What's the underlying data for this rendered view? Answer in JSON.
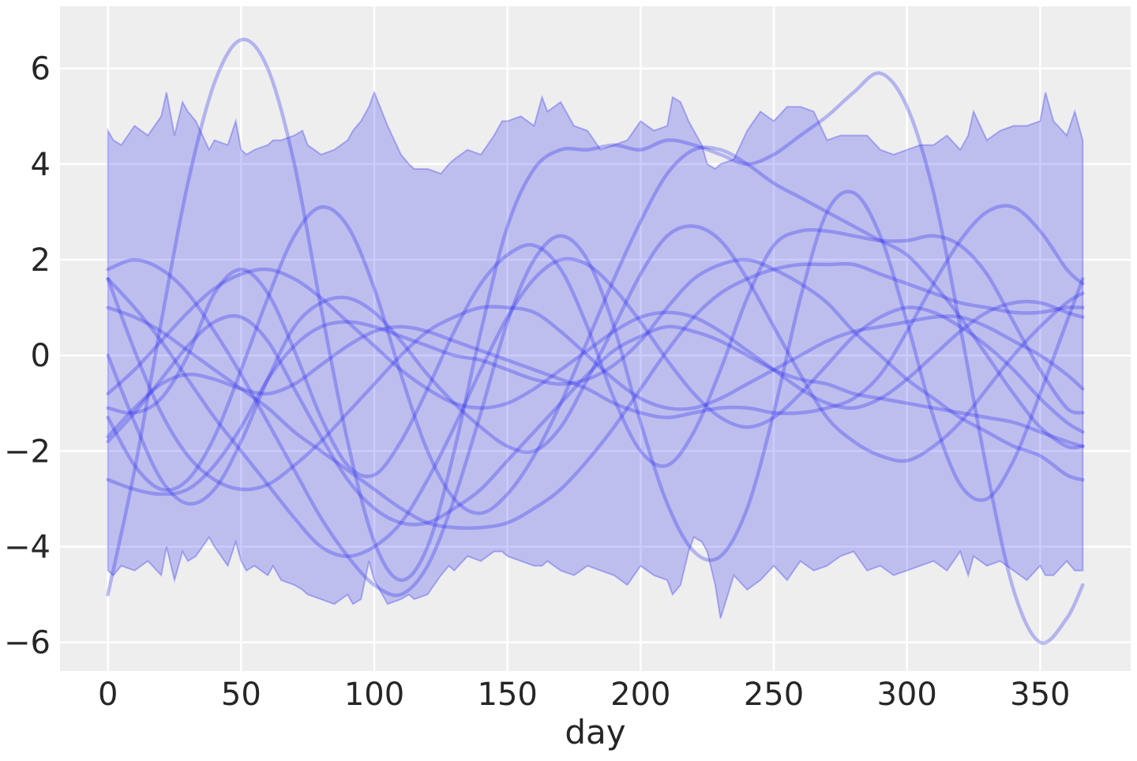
{
  "chart_data": {
    "type": "line",
    "title": "",
    "xlabel": "day",
    "ylabel": "",
    "xlim": [
      -18,
      384
    ],
    "ylim": [
      -6.6,
      7.3
    ],
    "xticks": [
      0,
      50,
      100,
      150,
      200,
      250,
      300,
      350
    ],
    "yticks": [
      -6,
      -4,
      -2,
      0,
      2,
      4,
      6
    ],
    "xtick_labels": [
      "0",
      "50",
      "100",
      "150",
      "200",
      "250",
      "300",
      "350"
    ],
    "ytick_labels": [
      "−6",
      "−4",
      "−2",
      "0",
      "2",
      "4",
      "6"
    ],
    "grid": true,
    "background_color": "#eeeeee",
    "grid_color": "#ffffff",
    "band_color": "#0000ee",
    "line_color": "#2a2aee",
    "interval_band": {
      "x": [
        0,
        2,
        5,
        10,
        15,
        20,
        22,
        25,
        28,
        30,
        33,
        38,
        40,
        45,
        48,
        50,
        52,
        55,
        60,
        62,
        65,
        70,
        73,
        75,
        80,
        85,
        90,
        92,
        95,
        98,
        100,
        105,
        110,
        113,
        115,
        120,
        125,
        128,
        130,
        135,
        140,
        145,
        148,
        150,
        155,
        160,
        163,
        165,
        170,
        175,
        180,
        185,
        190,
        195,
        200,
        205,
        210,
        212,
        215,
        218,
        220,
        223,
        225,
        228,
        230,
        235,
        240,
        245,
        250,
        255,
        260,
        265,
        270,
        275,
        280,
        285,
        290,
        295,
        300,
        305,
        310,
        315,
        320,
        323,
        325,
        330,
        335,
        340,
        345,
        350,
        352,
        355,
        360,
        363,
        366
      ],
      "upper": [
        4.7,
        4.5,
        4.4,
        4.8,
        4.6,
        5.0,
        5.5,
        4.6,
        5.3,
        5.1,
        4.9,
        4.3,
        4.5,
        4.4,
        4.9,
        4.3,
        4.2,
        4.3,
        4.4,
        4.5,
        4.5,
        4.6,
        4.7,
        4.4,
        4.2,
        4.3,
        4.5,
        4.7,
        4.9,
        5.2,
        5.5,
        4.8,
        4.2,
        4.0,
        3.9,
        3.9,
        3.8,
        4.0,
        4.1,
        4.3,
        4.2,
        4.6,
        4.9,
        4.9,
        5.0,
        4.8,
        5.4,
        5.1,
        5.3,
        4.8,
        4.7,
        4.3,
        4.4,
        4.5,
        4.9,
        4.7,
        4.8,
        5.4,
        5.3,
        4.9,
        4.7,
        4.4,
        4.0,
        3.9,
        4.0,
        4.1,
        4.7,
        5.1,
        4.9,
        5.2,
        5.2,
        5.1,
        4.5,
        4.6,
        4.6,
        4.6,
        4.3,
        4.2,
        4.3,
        4.4,
        4.4,
        4.6,
        4.3,
        4.6,
        5.1,
        4.5,
        4.7,
        4.8,
        4.8,
        4.9,
        5.5,
        4.9,
        4.6,
        5.1,
        4.5
      ],
      "lower": [
        -4.5,
        -4.6,
        -4.4,
        -4.5,
        -4.3,
        -4.6,
        -4.0,
        -4.7,
        -4.1,
        -4.3,
        -4.2,
        -3.8,
        -4.0,
        -4.4,
        -3.9,
        -4.3,
        -4.5,
        -4.4,
        -4.6,
        -4.4,
        -4.7,
        -4.8,
        -4.9,
        -5.0,
        -5.1,
        -5.2,
        -5.0,
        -5.2,
        -5.1,
        -4.3,
        -4.7,
        -5.2,
        -5.1,
        -5.0,
        -5.1,
        -5.0,
        -4.6,
        -4.4,
        -4.5,
        -4.2,
        -4.3,
        -4.1,
        -4.1,
        -4.2,
        -4.3,
        -4.4,
        -4.4,
        -4.3,
        -4.5,
        -4.6,
        -4.4,
        -4.5,
        -4.6,
        -4.8,
        -4.4,
        -4.6,
        -4.7,
        -5.0,
        -4.8,
        -4.1,
        -3.8,
        -3.9,
        -4.1,
        -4.8,
        -5.5,
        -4.6,
        -4.9,
        -4.7,
        -4.4,
        -4.7,
        -4.3,
        -4.5,
        -4.4,
        -4.2,
        -4.1,
        -4.5,
        -4.4,
        -4.6,
        -4.5,
        -4.4,
        -4.3,
        -4.5,
        -4.1,
        -4.6,
        -4.2,
        -4.4,
        -4.3,
        -4.5,
        -4.7,
        -4.4,
        -4.6,
        -4.6,
        -4.3,
        -4.5,
        -4.5
      ]
    },
    "sample_x": [
      0,
      10,
      20,
      30,
      40,
      50,
      60,
      70,
      80,
      90,
      100,
      110,
      120,
      130,
      140,
      150,
      160,
      170,
      180,
      190,
      200,
      210,
      220,
      230,
      240,
      250,
      260,
      270,
      280,
      290,
      300,
      310,
      320,
      330,
      340,
      350,
      360,
      366
    ],
    "series": [
      {
        "values": [
          -5.0,
          -2.4,
          0.7,
          3.6,
          5.7,
          6.6,
          6.0,
          4.0,
          1.0,
          -1.8,
          -3.9,
          -4.7,
          -4.0,
          -2.0,
          0.5,
          2.7,
          3.9,
          4.3,
          4.3,
          4.4,
          4.3,
          4.5,
          4.4,
          4.2,
          4.0,
          4.2,
          4.6,
          5.0,
          5.5,
          5.9,
          5.2,
          3.4,
          0.6,
          -2.4,
          -4.9,
          -6.0,
          -5.5,
          -4.8
        ]
      },
      {
        "values": [
          1.8,
          2.0,
          1.8,
          1.3,
          0.5,
          -0.4,
          -1.4,
          -2.4,
          -3.4,
          -4.2,
          -4.8,
          -5.0,
          -4.4,
          -3.0,
          -1.2,
          0.7,
          2.0,
          2.5,
          2.0,
          0.6,
          -1.4,
          -3.1,
          -4.1,
          -4.2,
          -3.2,
          -1.2,
          1.2,
          3.0,
          3.4,
          2.5,
          0.7,
          -1.3,
          -2.7,
          -3.0,
          -2.2,
          -0.8,
          0.7,
          1.6
        ]
      },
      {
        "values": [
          -1.3,
          -2.3,
          -2.8,
          -2.6,
          -1.7,
          -0.3,
          1.2,
          2.5,
          3.1,
          2.7,
          1.4,
          -0.4,
          -2.0,
          -3.0,
          -3.3,
          -2.9,
          -2.1,
          -1.0,
          0.3,
          1.6,
          2.8,
          3.8,
          4.3,
          4.3,
          4.0,
          3.6,
          3.3,
          3.0,
          2.7,
          2.4,
          2.1,
          1.5,
          0.8,
          0.0,
          -0.8,
          -1.5,
          -1.9,
          -1.9
        ]
      },
      {
        "values": [
          0.0,
          -1.4,
          -2.6,
          -3.1,
          -2.8,
          -1.8,
          -0.5,
          0.6,
          1.1,
          1.2,
          0.9,
          0.3,
          -0.4,
          -1.0,
          -1.5,
          -1.9,
          -2.0,
          -1.5,
          -0.5,
          0.6,
          1.7,
          2.5,
          2.7,
          2.4,
          1.6,
          0.6,
          -0.4,
          -1.3,
          -1.8,
          -2.1,
          -2.2,
          -1.9,
          -1.4,
          -0.7,
          0.0,
          0.6,
          1.1,
          1.3
        ]
      },
      {
        "values": [
          1.6,
          0.1,
          -1.2,
          -2.1,
          -2.6,
          -2.8,
          -2.7,
          -2.3,
          -1.8,
          -1.2,
          -0.6,
          0.0,
          0.5,
          0.8,
          1.0,
          1.0,
          0.9,
          0.5,
          0.0,
          -0.5,
          -0.9,
          -1.1,
          -1.1,
          -0.9,
          -0.6,
          -0.3,
          0.0,
          0.3,
          0.5,
          0.6,
          0.7,
          0.8,
          0.8,
          0.6,
          0.3,
          0.0,
          -0.4,
          -0.7
        ]
      },
      {
        "values": [
          -1.1,
          -1.2,
          -0.9,
          0.0,
          1.3,
          1.8,
          1.3,
          0.1,
          -1.3,
          -2.3,
          -2.5,
          -1.8,
          -0.7,
          0.5,
          1.5,
          2.1,
          2.3,
          1.8,
          0.6,
          -0.9,
          -2.0,
          -2.3,
          -1.6,
          -0.3,
          1.2,
          2.3,
          2.6,
          2.6,
          2.5,
          2.4,
          2.4,
          2.5,
          2.3,
          1.7,
          0.7,
          -0.3,
          -1.1,
          -1.2
        ]
      },
      {
        "values": [
          -1.7,
          -1.1,
          -0.6,
          -0.4,
          -0.5,
          -0.7,
          -0.8,
          -0.6,
          -0.2,
          0.2,
          0.5,
          0.6,
          0.5,
          0.3,
          0.1,
          -0.1,
          -0.3,
          -0.5,
          -0.7,
          -1.0,
          -1.2,
          -1.3,
          -1.2,
          -1.1,
          -1.1,
          -1.2,
          -1.2,
          -1.1,
          -0.9,
          -0.4,
          0.5,
          1.5,
          2.4,
          3.0,
          3.1,
          2.6,
          1.8,
          1.5
        ]
      },
      {
        "values": [
          -2.6,
          -2.8,
          -2.9,
          -2.8,
          -2.3,
          -1.5,
          -0.5,
          0.2,
          0.6,
          0.7,
          0.6,
          0.4,
          0.2,
          0.0,
          -0.1,
          -0.3,
          -0.5,
          -0.6,
          -0.5,
          -0.2,
          0.3,
          1.0,
          1.6,
          1.9,
          2.0,
          1.8,
          1.5,
          1.1,
          0.5,
          0.0,
          -0.5,
          -0.9,
          -1.3,
          -1.6,
          -1.9,
          -2.1,
          -2.5,
          -2.6
        ]
      },
      {
        "values": [
          1.0,
          0.8,
          0.5,
          0.1,
          -0.3,
          -0.7,
          -1.1,
          -1.6,
          -2.0,
          -2.4,
          -2.8,
          -3.2,
          -3.5,
          -3.6,
          -3.6,
          -3.5,
          -3.2,
          -2.8,
          -2.2,
          -1.5,
          -0.7,
          0.1,
          0.8,
          1.3,
          1.6,
          1.8,
          1.9,
          1.9,
          1.9,
          1.7,
          1.5,
          1.3,
          1.1,
          1.0,
          0.9,
          0.9,
          1.0,
          1.0
        ]
      },
      {
        "values": [
          -1.8,
          -1.2,
          -0.5,
          0.2,
          0.7,
          0.8,
          0.3,
          -0.7,
          -1.7,
          -2.6,
          -3.2,
          -3.5,
          -3.5,
          -3.2,
          -2.8,
          -2.2,
          -1.6,
          -1.0,
          -0.4,
          0.1,
          0.4,
          0.6,
          0.5,
          0.3,
          0.0,
          -0.3,
          -0.5,
          -0.6,
          -0.8,
          -0.9,
          -1.0,
          -1.1,
          -1.2,
          -1.3,
          -1.4,
          -1.6,
          -1.8,
          -1.9
        ]
      },
      {
        "values": [
          1.6,
          1.0,
          0.3,
          -0.5,
          -1.3,
          -2.0,
          -2.7,
          -3.4,
          -4.0,
          -4.2,
          -4.0,
          -3.5,
          -2.6,
          -1.5,
          -0.3,
          0.8,
          1.6,
          2.0,
          1.9,
          1.4,
          0.7,
          -0.1,
          -0.8,
          -1.3,
          -1.5,
          -1.3,
          -0.8,
          -0.2,
          0.4,
          0.8,
          1.0,
          0.9,
          0.6,
          0.2,
          -0.3,
          -0.9,
          -1.4,
          -1.6
        ]
      },
      {
        "values": [
          -0.8,
          -0.3,
          0.3,
          0.9,
          1.4,
          1.7,
          1.8,
          1.6,
          1.2,
          0.7,
          0.2,
          -0.3,
          -0.7,
          -1.0,
          -1.1,
          -1.0,
          -0.7,
          -0.3,
          0.1,
          0.5,
          0.8,
          0.9,
          0.8,
          0.5,
          0.1,
          -0.3,
          -0.7,
          -1.0,
          -1.1,
          -0.9,
          -0.5,
          0.0,
          0.5,
          0.9,
          1.1,
          1.1,
          0.9,
          0.8
        ]
      }
    ]
  }
}
